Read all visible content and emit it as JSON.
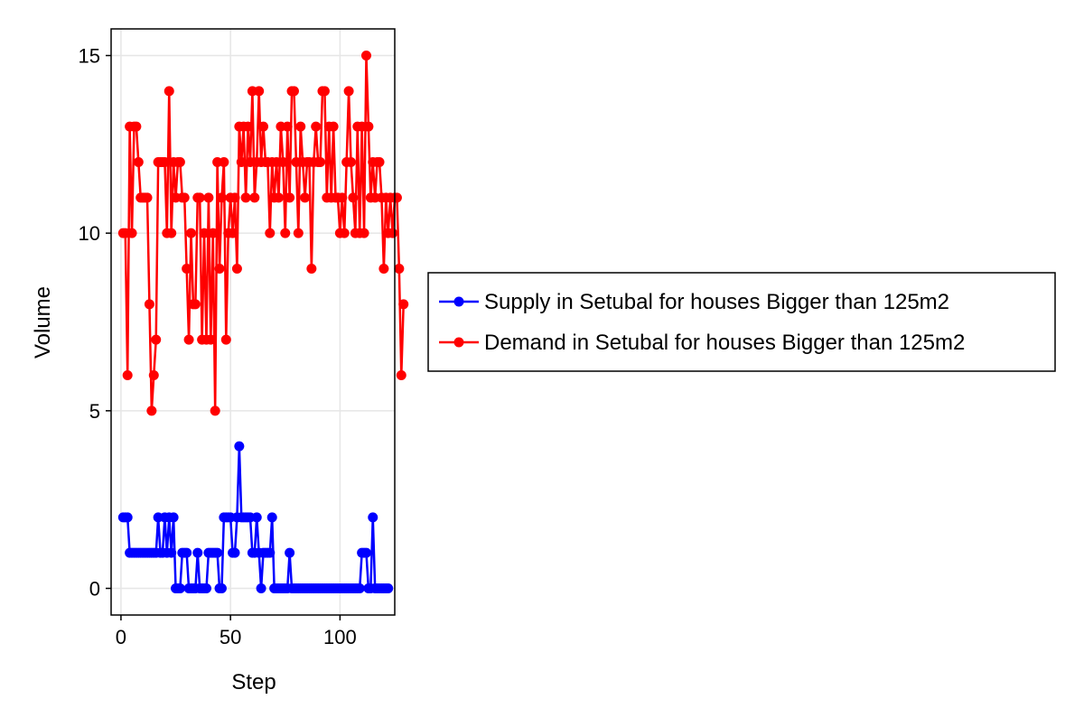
{
  "chart_data": {
    "type": "line",
    "title": "",
    "xlabel": "Step",
    "ylabel": "Volume",
    "xlim": [
      -4.5,
      125
    ],
    "ylim": [
      -0.75,
      15.75
    ],
    "x_ticks": [
      0,
      50,
      100
    ],
    "y_ticks": [
      0,
      5,
      10,
      15
    ],
    "x_tick_labels": [
      "0",
      "50",
      "100"
    ],
    "y_tick_labels": [
      "0",
      "5",
      "10",
      "15"
    ],
    "grid": true,
    "legend_position": "right",
    "series": [
      {
        "name": "Supply in Setubal for houses Bigger than 125m2",
        "color": "#0000ff",
        "values": [
          2,
          2,
          2,
          1,
          1,
          1,
          1,
          1,
          1,
          1,
          1,
          1,
          1,
          1,
          1,
          1,
          2,
          1,
          1,
          2,
          1,
          2,
          1,
          2,
          0,
          0,
          0,
          1,
          1,
          1,
          0,
          0,
          0,
          0,
          1,
          0,
          0,
          0,
          0,
          1,
          1,
          1,
          1,
          1,
          0,
          0,
          2,
          2,
          2,
          2,
          1,
          1,
          2,
          4,
          2,
          2,
          2,
          2,
          2,
          1,
          1,
          2,
          1,
          0,
          1,
          1,
          1,
          1,
          2,
          0,
          0,
          0,
          0,
          0,
          0,
          0,
          1,
          0,
          0,
          0,
          0,
          0,
          0,
          0,
          0,
          0,
          0,
          0,
          0,
          0,
          0,
          0,
          0,
          0,
          0,
          0,
          0,
          0,
          0,
          0,
          0,
          0,
          0,
          0,
          0,
          0,
          0,
          0,
          0,
          1,
          1,
          1,
          0,
          0,
          2,
          0,
          0,
          0,
          0,
          0,
          0,
          0
        ]
      },
      {
        "name": "Demand in Setubal for houses Bigger than 125m2",
        "color": "#ff0000",
        "values": [
          10,
          10,
          6,
          13,
          10,
          13,
          13,
          12,
          11,
          11,
          11,
          11,
          8,
          5,
          6,
          7,
          12,
          12,
          12,
          12,
          10,
          14,
          10,
          12,
          11,
          12,
          12,
          11,
          11,
          9,
          7,
          10,
          8,
          8,
          11,
          11,
          7,
          10,
          7,
          11,
          7,
          10,
          5,
          12,
          9,
          11,
          12,
          7,
          10,
          11,
          10,
          11,
          9,
          13,
          12,
          13,
          11,
          13,
          12,
          14,
          11,
          12,
          14,
          12,
          13,
          12,
          12,
          10,
          12,
          11,
          12,
          11,
          13,
          12,
          10,
          13,
          11,
          14,
          14,
          12,
          10,
          13,
          12,
          11,
          12,
          12,
          9,
          12,
          13,
          12,
          12,
          14,
          14,
          11,
          13,
          11,
          13,
          11,
          11,
          10,
          11,
          10,
          12,
          14,
          12,
          11,
          10,
          13,
          10,
          13,
          10,
          15,
          13,
          11,
          12,
          11,
          12,
          12,
          11,
          9,
          11,
          10,
          11,
          10,
          11,
          11,
          9,
          6,
          8
        ]
      }
    ]
  }
}
